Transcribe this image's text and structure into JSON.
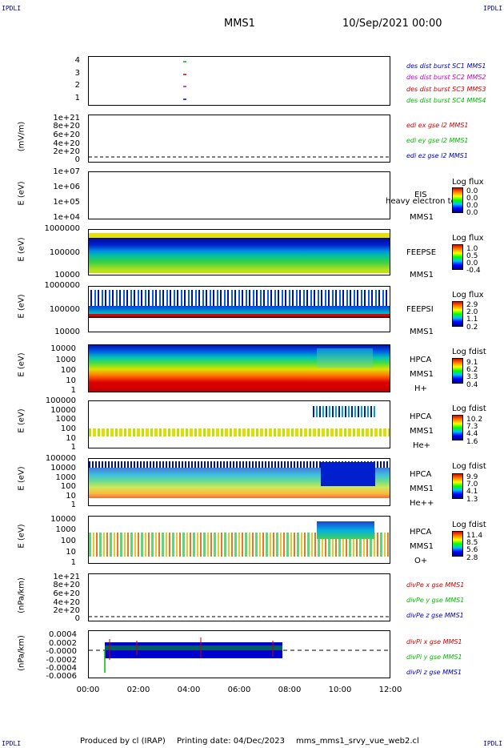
{
  "corners": {
    "tl": "IPDLI",
    "tr": "IPDLI",
    "bl": "IPDLI",
    "br": "IPDLI"
  },
  "header": {
    "spacecraft": "MMS1",
    "date": "10/Sep/2021 00:00"
  },
  "footer": {
    "produced": "Produced by cl (IRAP)",
    "printed": "Printing date: 04/Dec/2023",
    "file": "mms_mms1_srvy_vue_web2.cl"
  },
  "colors": {
    "red": "#d00000",
    "green": "#00bb00",
    "blue": "#0000cc",
    "magenta": "#cc00cc"
  },
  "chart_data": [
    {
      "type": "scatter",
      "ylim": [
        0.5,
        4.5
      ],
      "yticks": [
        "4",
        "3",
        "2",
        "1"
      ],
      "legend": [
        {
          "name": "des dist burst SC1 MMS1",
          "color": "#0000cc"
        },
        {
          "name": "des dist burst SC2 MMS2",
          "color": "#cc00cc"
        },
        {
          "name": "des dist burst SC3 MMS3",
          "color": "#d00000"
        },
        {
          "name": "des dist burst SC4 MMS4",
          "color": "#00bb00"
        }
      ],
      "points": [
        {
          "x": "03:55",
          "y": 4
        },
        {
          "x": "03:55",
          "y": 3
        },
        {
          "x": "03:55",
          "y": 2
        },
        {
          "x": "03:55",
          "y": 1
        }
      ]
    },
    {
      "type": "line",
      "ylabel": "(mV/m)",
      "yticks": [
        "1e+21",
        "8e+20",
        "6e+20",
        "4e+20",
        "2e+20",
        "0"
      ],
      "legend": [
        {
          "name": "edi ex gse l2 MMS1",
          "color": "#d00000"
        },
        {
          "name": "edi ey gse l2 MMS1",
          "color": "#00bb00"
        },
        {
          "name": "edi ez gse l2 MMS1",
          "color": "#0000cc"
        }
      ]
    },
    {
      "type": "heatmap",
      "ylabel": "E (eV)",
      "yscale": "log",
      "yticks": [
        "1e+07",
        "1e+06",
        "1e+05",
        "1e+04"
      ],
      "instrument": "EIS",
      "subtitle": "MMS1",
      "overlay": "heavy electron to",
      "colorbar": {
        "title": "Log flux",
        "values": [
          "0.0",
          "0.0",
          "0.0",
          "0.0"
        ]
      }
    },
    {
      "type": "heatmap",
      "ylabel": "E (eV)",
      "yscale": "log",
      "yticks": [
        "1000000",
        "100000",
        "10000"
      ],
      "instrument": "FEEPSE",
      "subtitle": "MMS1",
      "colorbar": {
        "title": "Log flux",
        "values": [
          "1.0",
          "0.5",
          "0.0",
          "-0.4"
        ]
      }
    },
    {
      "type": "heatmap",
      "ylabel": "E (eV)",
      "yscale": "log",
      "yticks": [
        "1000000",
        "100000",
        "10000"
      ],
      "instrument": "FEEPSI",
      "subtitle": "MMS1",
      "colorbar": {
        "title": "Log flux",
        "values": [
          "2.9",
          "2.0",
          "1.1",
          "0.2"
        ]
      }
    },
    {
      "type": "heatmap",
      "ylabel": "E (eV)",
      "yscale": "log",
      "yticks": [
        "10000",
        "1000",
        "100",
        "10",
        "1"
      ],
      "instrument": "HPCA",
      "subtitle": "MMS1",
      "species": "H+",
      "colorbar": {
        "title": "Log fdist",
        "values": [
          "9.1",
          "6.2",
          "3.3",
          "0.4"
        ]
      }
    },
    {
      "type": "heatmap",
      "ylabel": "E (eV)",
      "yscale": "log",
      "yticks": [
        "100000",
        "10000",
        "1000",
        "100",
        "10",
        "1"
      ],
      "instrument": "HPCA",
      "subtitle": "MMS1",
      "species": "He+",
      "colorbar": {
        "title": "Log fdist",
        "values": [
          "10.2",
          "7.3",
          "4.4",
          "1.6"
        ]
      }
    },
    {
      "type": "heatmap",
      "ylabel": "E (eV)",
      "yscale": "log",
      "yticks": [
        "100000",
        "10000",
        "1000",
        "100",
        "10",
        "1"
      ],
      "instrument": "HPCA",
      "subtitle": "MMS1",
      "species": "He++",
      "colorbar": {
        "title": "Log fdist",
        "values": [
          "9.9",
          "7.0",
          "4.1",
          "1.3"
        ]
      }
    },
    {
      "type": "heatmap",
      "ylabel": "E (eV)",
      "yscale": "log",
      "yticks": [
        "10000",
        "1000",
        "100",
        "10",
        "1"
      ],
      "instrument": "HPCA",
      "subtitle": "MMS1",
      "species": "O+",
      "colorbar": {
        "title": "Log fdist",
        "values": [
          "11.4",
          "8.5",
          "5.6",
          "2.8"
        ]
      }
    },
    {
      "type": "line",
      "ylabel": "(nPa/km)",
      "yticks": [
        "1e+21",
        "8e+20",
        "6e+20",
        "4e+20",
        "2e+20",
        "0"
      ],
      "legend": [
        {
          "name": "divPe x gse MMS1",
          "color": "#d00000"
        },
        {
          "name": "divPe y gse MMS1",
          "color": "#00bb00"
        },
        {
          "name": "divPe z gse MMS1",
          "color": "#0000cc"
        }
      ]
    },
    {
      "type": "line",
      "ylabel": "(nPa/km)",
      "yticks": [
        "0.0004",
        "0.0002",
        "-0.0000",
        "-0.0002",
        "-0.0004",
        "-0.0006"
      ],
      "ylim": [
        -0.0007,
        0.0005
      ],
      "xrange": [
        "00:40",
        "07:40"
      ],
      "legend": [
        {
          "name": "divPi x gse MMS1",
          "color": "#d00000"
        },
        {
          "name": "divPi y gse MMS1",
          "color": "#00bb00"
        },
        {
          "name": "divPi z gse MMS1",
          "color": "#0000cc"
        }
      ]
    }
  ],
  "xaxis": {
    "ticks": [
      "00:00",
      "02:00",
      "04:00",
      "06:00",
      "08:00",
      "10:00",
      "12:00"
    ]
  }
}
